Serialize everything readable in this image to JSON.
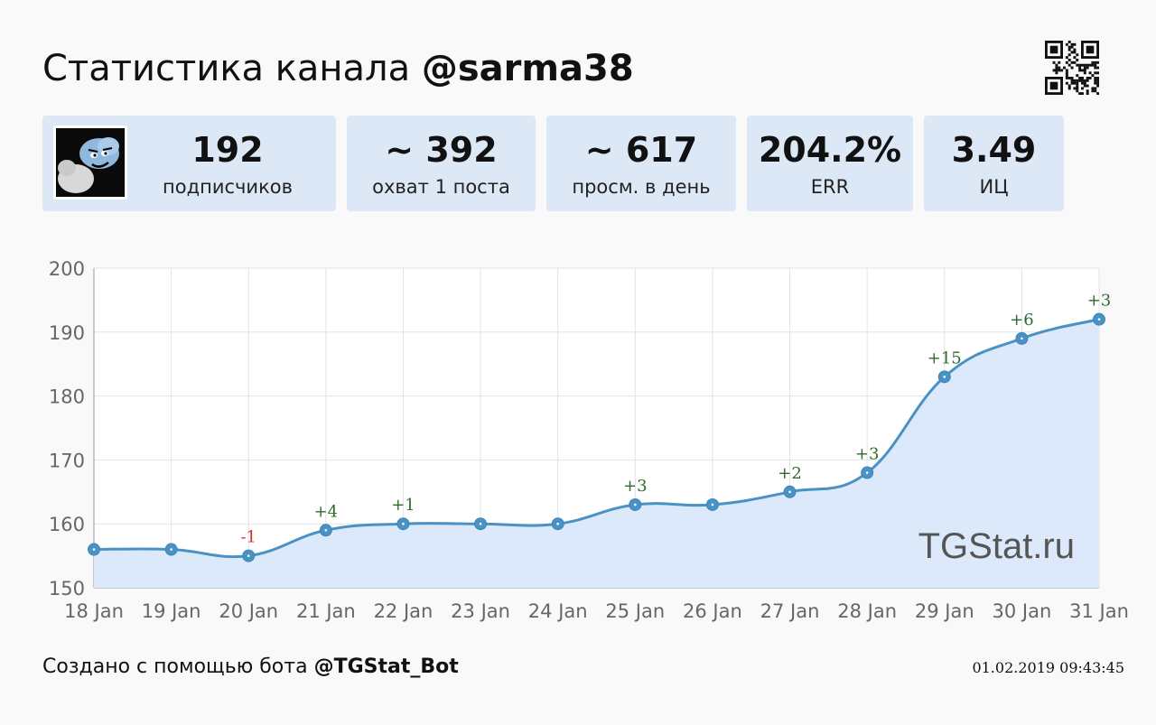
{
  "header": {
    "title_prefix": "Статистика канала ",
    "channel": "@sarma38"
  },
  "stats": {
    "subscribers": {
      "value": "192",
      "label": "подписчиков"
    },
    "reach": {
      "value": "~ 392",
      "label": "охват 1 поста"
    },
    "daily_views": {
      "value": "~ 617",
      "label": "просм. в день"
    },
    "err": {
      "value": "204.2%",
      "label": "ERR"
    },
    "citation": {
      "value": "3.49",
      "label": "ИЦ"
    }
  },
  "watermark": "TGStat.ru",
  "footer": {
    "prefix": "Создано с помощью бота ",
    "bot": "@TGStat_Bot",
    "timestamp": "01.02.2019 09:43:45"
  },
  "colors": {
    "line": "#4a92c4",
    "area": "#dce9fa",
    "card": "#dde8f7",
    "positive": "#2e6b2a",
    "negative": "#c0392b"
  },
  "chart_data": {
    "type": "area",
    "x": [
      "18 Jan",
      "19 Jan",
      "20 Jan",
      "21 Jan",
      "22 Jan",
      "23 Jan",
      "24 Jan",
      "25 Jan",
      "26 Jan",
      "27 Jan",
      "28 Jan",
      "29 Jan",
      "30 Jan",
      "31 Jan"
    ],
    "values": [
      156,
      156,
      155,
      159,
      160,
      160,
      160,
      163,
      163,
      165,
      168,
      183,
      189,
      192
    ],
    "deltas": [
      "",
      "",
      "-1",
      "+4",
      "+1",
      "",
      "",
      "+3",
      "",
      "+2",
      "+3",
      "+15",
      "+6",
      "+3"
    ],
    "yticks": [
      150,
      160,
      170,
      180,
      190,
      200
    ],
    "ylim": [
      150,
      200
    ],
    "grid": true
  }
}
